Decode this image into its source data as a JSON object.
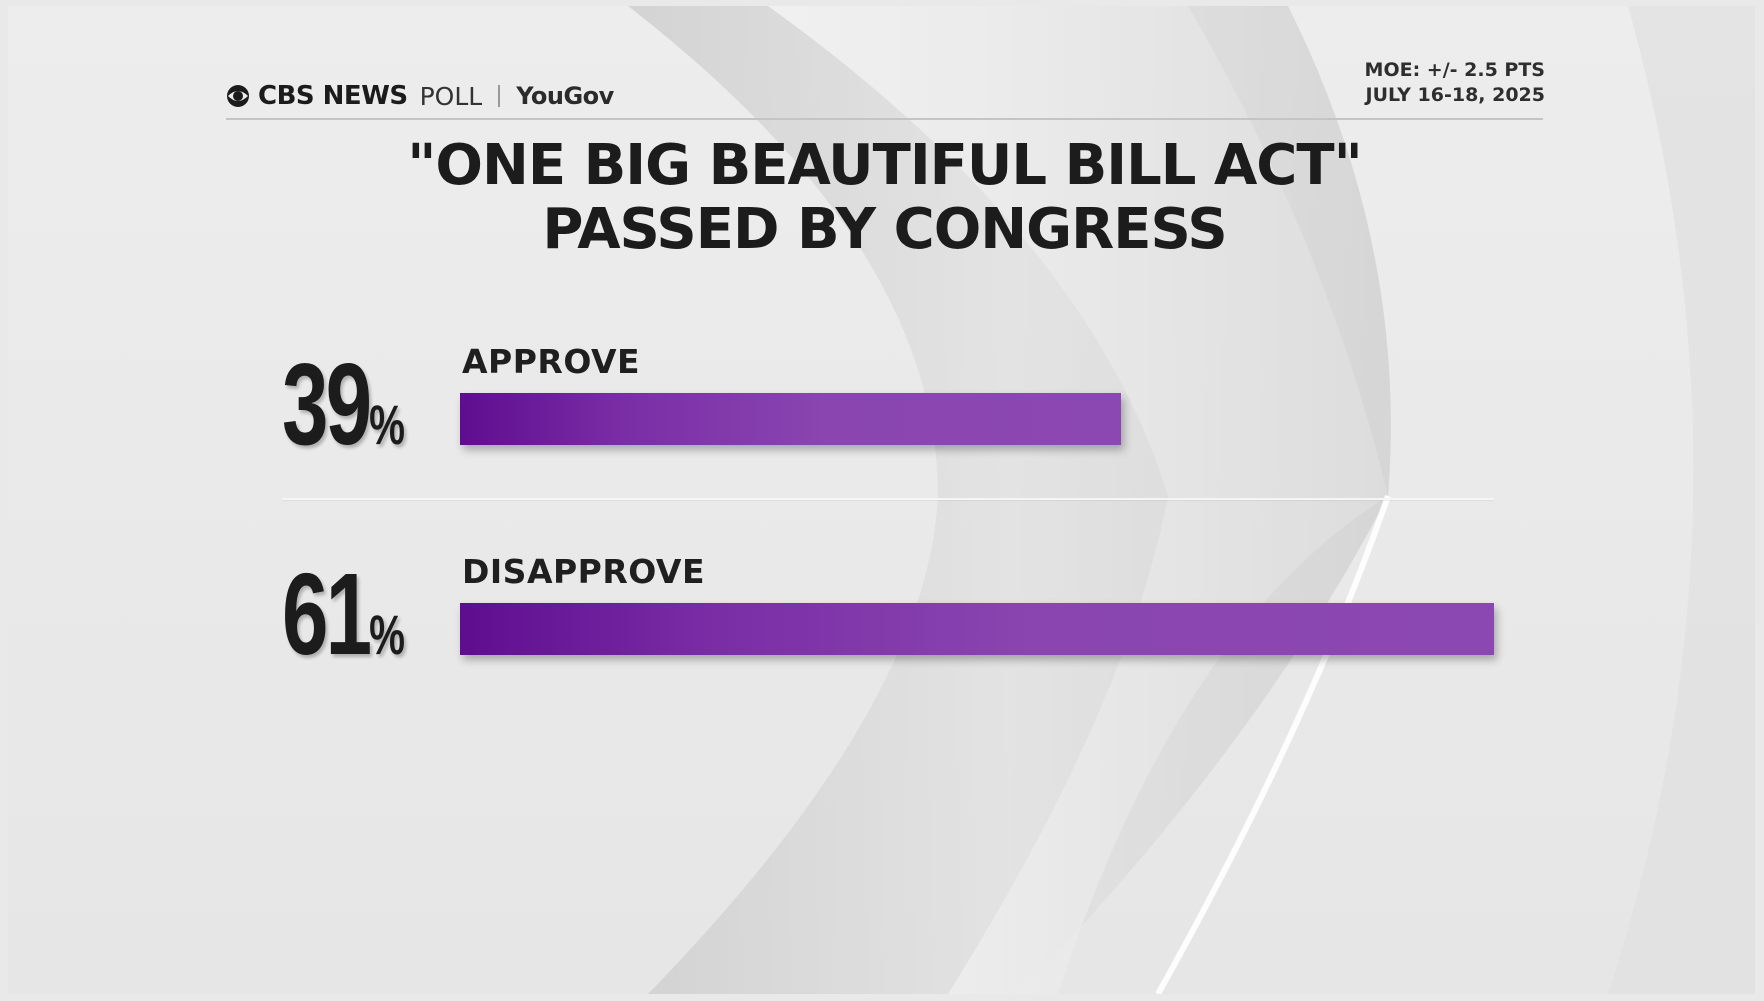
{
  "header": {
    "brand_cbs": "CBS NEWS",
    "brand_poll": "POLL",
    "brand_yougov": "YouGov",
    "moe": "MOE: +/- 2.5 PTS",
    "dates": "JULY 16-18, 2025"
  },
  "chart_data": {
    "type": "bar",
    "orientation": "horizontal",
    "title": "\"ONE BIG BEAUTIFUL BILL ACT\"",
    "subtitle": "PASSED BY CONGRESS",
    "categories": [
      "APPROVE",
      "DISAPPROVE"
    ],
    "values": [
      39,
      61
    ],
    "value_labels": [
      "39",
      "61"
    ],
    "unit": "%",
    "xlim": [
      0,
      61
    ],
    "bar_color": "#8c48b2",
    "grid": false,
    "legend": "none"
  }
}
